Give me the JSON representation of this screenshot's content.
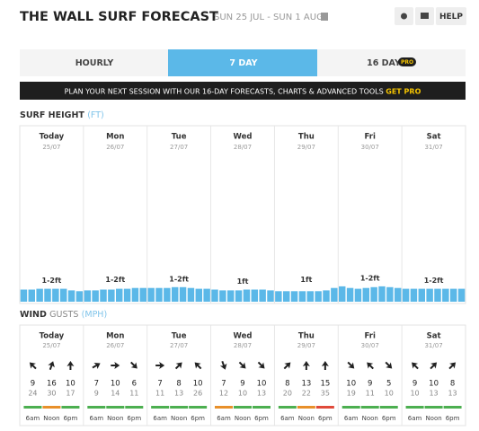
{
  "header": {
    "title": "THE WALL SURF FORECAST",
    "dates": "SUN 25 JUL - SUN 1 AUG",
    "help": "HELP"
  },
  "tabs": [
    {
      "label": "HOURLY"
    },
    {
      "label": "7 DAY"
    },
    {
      "label": "16 DAY",
      "badge": "PRO"
    }
  ],
  "banner": {
    "text": "PLAN YOUR NEXT SESSION WITH OUR 16-DAY FORECASTS, CHARTS & ADVANCED TOOLS",
    "cta": "GET PRO"
  },
  "surf": {
    "title": "SURF HEIGHT",
    "unit": "(FT)",
    "bar_color": "#5bb8e8"
  },
  "wind": {
    "title": "WIND",
    "subtitle": "GUSTS",
    "unit": "(MPH)"
  },
  "times": [
    "6am",
    "Noon",
    "6pm"
  ],
  "days": [
    {
      "name": "Today",
      "date": "25/07",
      "surf_label": "1-2ft",
      "surf": [
        1.5,
        1.5,
        1.6,
        1.6,
        1.6,
        1.6,
        1.4,
        1.3
      ],
      "wind": [
        {
          "speed": 9,
          "gust": 24,
          "direction": 315,
          "color": "#4caf50"
        },
        {
          "speed": 16,
          "gust": 30,
          "direction": 20,
          "color": "#e8902a"
        },
        {
          "speed": 10,
          "gust": 17,
          "direction": 0,
          "color": "#4caf50"
        }
      ]
    },
    {
      "name": "Mon",
      "date": "26/07",
      "surf_label": "1-2ft",
      "surf": [
        1.4,
        1.4,
        1.5,
        1.5,
        1.6,
        1.6,
        1.7,
        1.7
      ],
      "wind": [
        {
          "speed": 7,
          "gust": 9,
          "direction": 60,
          "color": "#4caf50"
        },
        {
          "speed": 10,
          "gust": 14,
          "direction": 90,
          "color": "#4caf50"
        },
        {
          "speed": 6,
          "gust": 11,
          "direction": 135,
          "color": "#4caf50"
        }
      ]
    },
    {
      "name": "Tue",
      "date": "27/07",
      "surf_label": "1-2ft",
      "surf": [
        1.7,
        1.7,
        1.7,
        1.8,
        1.8,
        1.7,
        1.6,
        1.6
      ],
      "wind": [
        {
          "speed": 7,
          "gust": 11,
          "direction": 90,
          "color": "#4caf50"
        },
        {
          "speed": 8,
          "gust": 13,
          "direction": 45,
          "color": "#4caf50"
        },
        {
          "speed": 10,
          "gust": 26,
          "direction": 315,
          "color": "#4caf50"
        }
      ]
    },
    {
      "name": "Wed",
      "date": "28/07",
      "surf_label": "1ft",
      "surf": [
        1.5,
        1.4,
        1.4,
        1.4,
        1.5,
        1.5,
        1.5,
        1.4
      ],
      "wind": [
        {
          "speed": 7,
          "gust": 12,
          "direction": 160,
          "color": "#e8902a"
        },
        {
          "speed": 9,
          "gust": 10,
          "direction": 135,
          "color": "#4caf50"
        },
        {
          "speed": 10,
          "gust": 13,
          "direction": 135,
          "color": "#4caf50"
        }
      ]
    },
    {
      "name": "Thu",
      "date": "29/07",
      "surf_label": "1ft",
      "surf": [
        1.3,
        1.3,
        1.3,
        1.3,
        1.3,
        1.3,
        1.4,
        1.7
      ],
      "wind": [
        {
          "speed": 8,
          "gust": 20,
          "direction": 45,
          "color": "#4caf50"
        },
        {
          "speed": 13,
          "gust": 22,
          "direction": 0,
          "color": "#e8902a"
        },
        {
          "speed": 15,
          "gust": 35,
          "direction": 0,
          "color": "#e04a3a"
        }
      ]
    },
    {
      "name": "Fri",
      "date": "30/07",
      "surf_label": "1-2ft",
      "surf": [
        1.9,
        1.7,
        1.6,
        1.7,
        1.8,
        1.9,
        1.8,
        1.7
      ],
      "wind": [
        {
          "speed": 10,
          "gust": 19,
          "direction": 135,
          "color": "#4caf50"
        },
        {
          "speed": 9,
          "gust": 11,
          "direction": 315,
          "color": "#4caf50"
        },
        {
          "speed": 5,
          "gust": 10,
          "direction": 135,
          "color": "#4caf50"
        }
      ]
    },
    {
      "name": "Sat",
      "date": "31/07",
      "surf_label": "1-2ft",
      "surf": [
        1.6,
        1.6,
        1.6,
        1.6,
        1.6,
        1.6,
        1.6,
        1.6
      ],
      "wind": [
        {
          "speed": 9,
          "gust": 10,
          "direction": 315,
          "color": "#4caf50"
        },
        {
          "speed": 10,
          "gust": 13,
          "direction": 45,
          "color": "#4caf50"
        },
        {
          "speed": 8,
          "gust": 13,
          "direction": 45,
          "color": "#4caf50"
        }
      ]
    }
  ]
}
